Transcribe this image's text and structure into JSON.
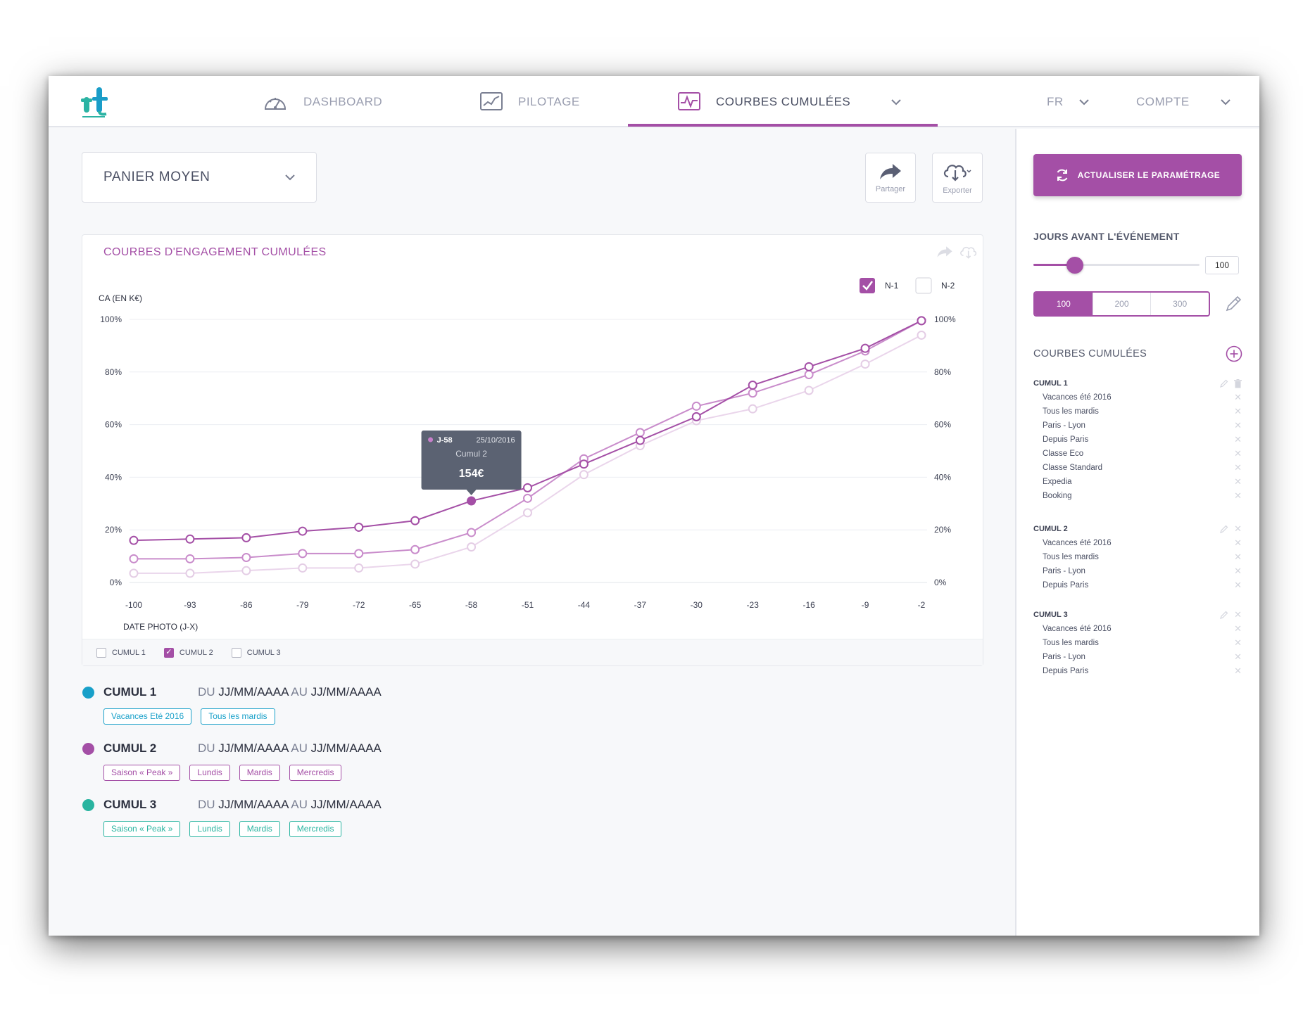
{
  "header": {
    "nav": [
      {
        "label": "DASHBOARD"
      },
      {
        "label": "PILOTAGE"
      },
      {
        "label": "COURBES CUMULÉES"
      }
    ],
    "lang": "FR",
    "account": "COMPTE"
  },
  "metric_select": {
    "value": "PANIER MOYEN"
  },
  "toolbar": {
    "share_label": "Partager",
    "export_label": "Exporter"
  },
  "colors": {
    "accent": "#a44fa6",
    "cumul1": "#18a0c9",
    "cumul2": "#a44fa6",
    "cumul3": "#29b4a0"
  },
  "chart_data": {
    "type": "line",
    "title": "COURBES D'ENGAGEMENT CUMULÉES",
    "ylabel": "CA (EN K€)",
    "xlabel": "DATE PHOTO (J-X)",
    "x": [
      -100,
      -93,
      -86,
      -79,
      -72,
      -65,
      -58,
      -51,
      -44,
      -37,
      -30,
      -23,
      -16,
      -9,
      -2
    ],
    "y_ticks": [
      "0%",
      "20%",
      "40%",
      "60%",
      "80%",
      "100%"
    ],
    "ylim": [
      0,
      100
    ],
    "legend": [
      {
        "label": "N-1",
        "checked": true
      },
      {
        "label": "N-2",
        "checked": false
      }
    ],
    "series": [
      {
        "name": "Cumul 2",
        "values": [
          16,
          16.5,
          17,
          19.5,
          21,
          23.5,
          31,
          36,
          45,
          54,
          63,
          75,
          82,
          89,
          99.5
        ]
      },
      {
        "name": "Cumul 2 N-1",
        "values": [
          9,
          9,
          9.5,
          11,
          11,
          12.5,
          19,
          32,
          47,
          57,
          67,
          72,
          79,
          88,
          99.5
        ]
      },
      {
        "name": "Cumul 2 N-2",
        "values": [
          3.5,
          3.5,
          4.5,
          5.5,
          5.5,
          7,
          13.5,
          26.5,
          41,
          52,
          61.5,
          66,
          73,
          83,
          94
        ]
      }
    ],
    "tooltip": {
      "label": "J-58",
      "date": "25/10/2016",
      "series": "Cumul 2",
      "value": "154€"
    },
    "footer_toggles": [
      {
        "label": "CUMUL 1",
        "checked": false
      },
      {
        "label": "CUMUL 2",
        "checked": true
      },
      {
        "label": "CUMUL 3",
        "checked": false
      }
    ]
  },
  "summary": [
    {
      "name": "CUMUL 1",
      "du": "DU",
      "from": "JJ/MM/AAAA",
      "au": "AU",
      "to": "JJ/MM/AAAA",
      "tags": [
        "Vacances Eté 2016",
        "Tous les mardis"
      ]
    },
    {
      "name": "CUMUL 2",
      "du": "DU",
      "from": "JJ/MM/AAAA",
      "au": "AU",
      "to": "JJ/MM/AAAA",
      "tags": [
        "Saison « Peak »",
        "Lundis",
        "Mardis",
        "Mercredis"
      ]
    },
    {
      "name": "CUMUL 3",
      "du": "DU",
      "from": "JJ/MM/AAAA",
      "au": "AU",
      "to": "JJ/MM/AAAA",
      "tags": [
        "Saison « Peak »",
        "Lundis",
        "Mardis",
        "Mercredis"
      ]
    }
  ],
  "sidebar": {
    "refresh_label": "ACTUALISER LE PARAMÉTRAGE",
    "days_title": "JOURS AVANT L'ÉVÉNEMENT",
    "days_value": "100",
    "slider_fraction": 0.25,
    "presets": [
      "100",
      "200",
      "300"
    ],
    "curves_title": "COURBES CUMULÉES",
    "groups": [
      {
        "name": "CUMUL 1",
        "items": [
          "Vacances été 2016",
          "Tous les mardis",
          "Paris - Lyon",
          "Depuis Paris",
          "Classe Eco",
          "Classe Standard",
          "Expedia",
          "Booking"
        ]
      },
      {
        "name": "CUMUL 2",
        "items": [
          "Vacances été 2016",
          "Tous les mardis",
          "Paris - Lyon",
          "Depuis Paris"
        ]
      },
      {
        "name": "CUMUL 3",
        "items": [
          "Vacances été 2016",
          "Tous les mardis",
          "Paris - Lyon",
          "Depuis Paris"
        ]
      }
    ]
  }
}
